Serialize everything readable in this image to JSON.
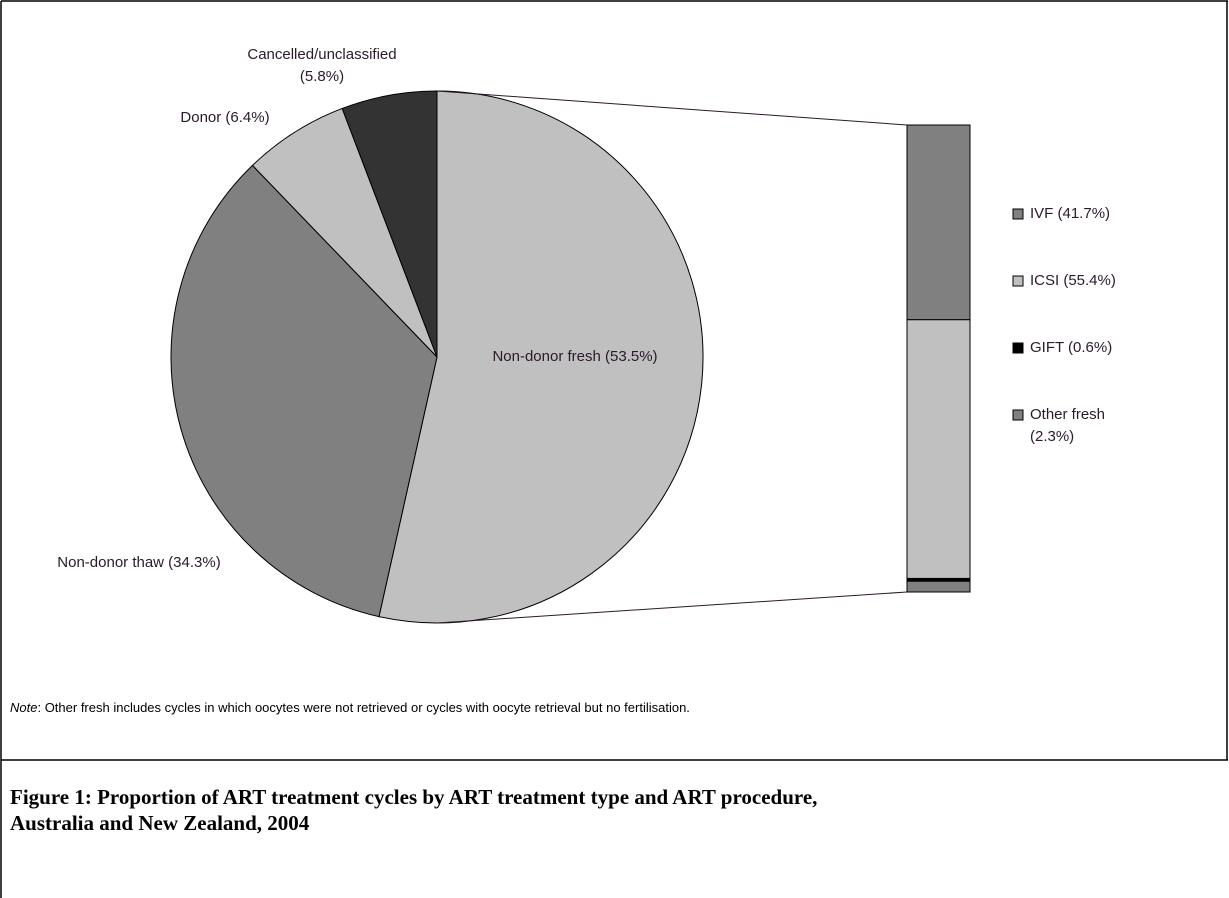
{
  "chart_data": {
    "type": "pie-of-bar",
    "pie": {
      "labels": [
        "Non-donor fresh (53.5%)",
        "Non-donor thaw (34.3%)",
        "Donor (6.4%)",
        [
          "Cancelled/unclassified",
          "(5.8%)"
        ]
      ],
      "values": [
        53.5,
        34.3,
        6.4,
        5.8
      ],
      "colors": [
        "#c0c0c0",
        "#808080",
        "#c0c0c0",
        "#333333"
      ]
    },
    "bar": {
      "labels": [
        "IVF (41.7%)",
        "ICSI (55.4%)",
        "GIFT (0.6%)",
        [
          "Other fresh",
          "(2.3%)"
        ]
      ],
      "values": [
        41.7,
        55.4,
        0.6,
        2.3
      ],
      "colors": [
        "#808080",
        "#c0c0c0",
        "#000000",
        "#808080"
      ]
    },
    "note_label": "Note",
    "note_text": ": Other fresh includes cycles in which oocytes were not retrieved or cycles with oocyte retrieval but no fertilisation.",
    "title": [
      "Figure 1: Proportion of ART treatment cycles by ART treatment type and ART procedure,",
      "Australia and New Zealand, 2004"
    ]
  }
}
